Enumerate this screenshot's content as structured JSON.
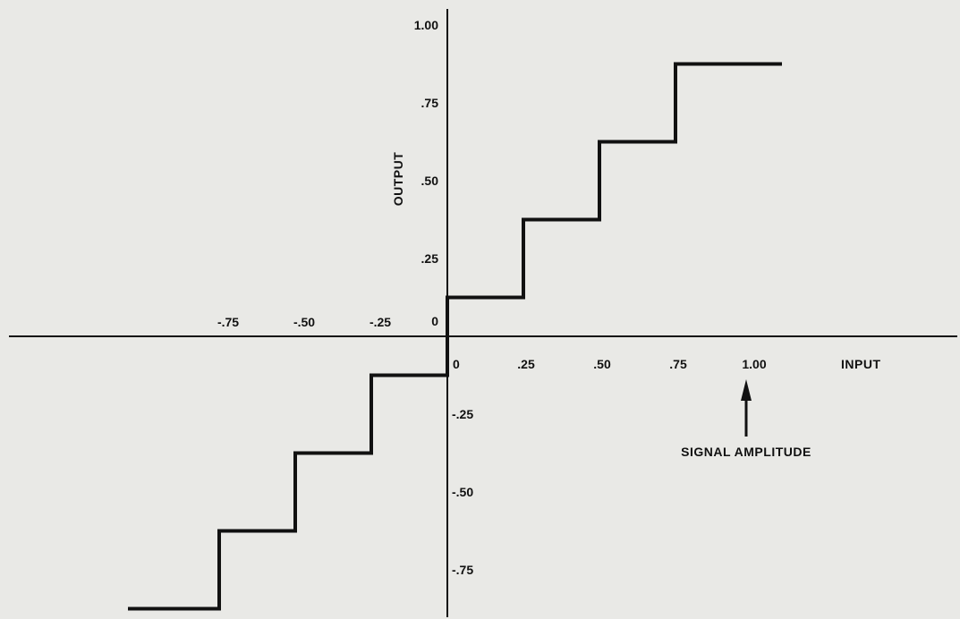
{
  "chart_data": {
    "type": "line",
    "title": "",
    "xlabel": "INPUT",
    "ylabel": "OUTPUT",
    "xlim": [
      -1.1,
      1.1
    ],
    "ylim": [
      -1.0,
      1.05
    ],
    "x_tick_labels_negative": [
      {
        "value": -0.75,
        "label": "-.75"
      },
      {
        "value": -0.5,
        "label": "-.50"
      },
      {
        "value": -0.25,
        "label": "-.25"
      }
    ],
    "x_tick_labels_positive": [
      {
        "value": 0,
        "label": "0"
      },
      {
        "value": 0.25,
        "label": ".25"
      },
      {
        "value": 0.5,
        "label": ".50"
      },
      {
        "value": 0.75,
        "label": ".75"
      },
      {
        "value": 1.0,
        "label": "1.00"
      }
    ],
    "y_tick_labels": [
      {
        "value": 1.0,
        "label": "1.00"
      },
      {
        "value": 0.75,
        "label": ".75"
      },
      {
        "value": 0.5,
        "label": ".50"
      },
      {
        "value": 0.25,
        "label": ".25"
      },
      {
        "value": 0,
        "label": "0"
      },
      {
        "value": -0.25,
        "label": "-.25"
      },
      {
        "value": -0.5,
        "label": "-.50"
      },
      {
        "value": -0.75,
        "label": "-.75"
      }
    ],
    "series": [
      {
        "x": [
          -1.05,
          -0.75,
          -0.75,
          -0.5,
          -0.5,
          -0.25,
          -0.25,
          0,
          0,
          0.25,
          0.25,
          0.5,
          0.5,
          0.75,
          0.75,
          1.1
        ],
        "y": [
          -0.875,
          -0.875,
          -0.625,
          -0.625,
          -0.375,
          -0.375,
          -0.125,
          -0.125,
          0.125,
          0.125,
          0.375,
          0.375,
          0.625,
          0.625,
          0.875,
          0.875
        ]
      }
    ],
    "annotation": {
      "text": "SIGNAL AMPLITUDE",
      "points_to_x": 1.0
    },
    "grid": false,
    "legend": "none"
  }
}
